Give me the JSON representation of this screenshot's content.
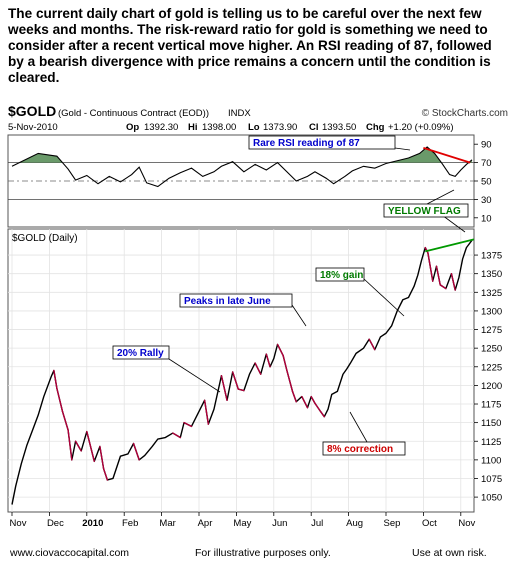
{
  "intro_text": "The current daily chart of gold is telling us to be careful over the next few weeks and months.  The risk-reward ratio for gold is something we need to consider after a recent vertical move higher.  An RSI reading of 87, followed by a bearish divergence with price remains a concern until the condition is cleared.",
  "footer": {
    "website": "www.ciovaccocapital.com",
    "disclaimer": "For illustrative purposes only.",
    "risk": "Use at own risk."
  },
  "chart_data": {
    "type": "line",
    "symbol": "$GOLD",
    "symbol_desc": "(Gold - Continuous Contract (EOD))",
    "exchange": "INDX",
    "provider": "© StockCharts.com",
    "date": "5-Nov-2010",
    "quote": {
      "op": "1392.30",
      "hi": "1398.00",
      "lo": "1373.90",
      "cl": "1393.50",
      "chg": "+1.20 (+0.09%)"
    },
    "price_panel_label": "$GOLD (Daily)",
    "x_ticks": [
      "Nov",
      "Dec",
      "2010",
      "Feb",
      "Mar",
      "Apr",
      "May",
      "Jun",
      "Jul",
      "Aug",
      "Sep",
      "Oct",
      "Nov"
    ],
    "rsi": {
      "ylim": [
        0,
        100
      ],
      "yticks": [
        10,
        30,
        50,
        70,
        90
      ],
      "overbought": 70,
      "oversold": 30,
      "midline": 50,
      "points": [
        [
          0,
          66
        ],
        [
          0.3,
          72
        ],
        [
          0.7,
          80
        ],
        [
          1.2,
          77
        ],
        [
          1.5,
          63
        ],
        [
          1.7,
          51
        ],
        [
          2.0,
          56
        ],
        [
          2.3,
          47
        ],
        [
          2.6,
          55
        ],
        [
          2.9,
          49
        ],
        [
          3.2,
          57
        ],
        [
          3.4,
          65
        ],
        [
          3.6,
          48
        ],
        [
          3.9,
          44
        ],
        [
          4.2,
          53
        ],
        [
          4.5,
          59
        ],
        [
          4.8,
          64
        ],
        [
          5.1,
          55
        ],
        [
          5.4,
          60
        ],
        [
          5.6,
          66
        ],
        [
          5.9,
          71
        ],
        [
          6.2,
          60
        ],
        [
          6.5,
          68
        ],
        [
          6.8,
          62
        ],
        [
          7.1,
          70
        ],
        [
          7.4,
          58
        ],
        [
          7.6,
          50
        ],
        [
          7.9,
          55
        ],
        [
          8.1,
          60
        ],
        [
          8.4,
          53
        ],
        [
          8.6,
          47
        ],
        [
          8.9,
          55
        ],
        [
          9.1,
          61
        ],
        [
          9.4,
          66
        ],
        [
          9.7,
          64
        ],
        [
          10.0,
          69
        ],
        [
          10.3,
          72
        ],
        [
          10.6,
          75
        ],
        [
          10.9,
          80
        ],
        [
          11.1,
          87
        ],
        [
          11.3,
          80
        ],
        [
          11.5,
          69
        ],
        [
          11.7,
          57
        ],
        [
          11.85,
          55
        ],
        [
          12.0,
          62
        ],
        [
          12.15,
          68
        ],
        [
          12.3,
          73
        ]
      ],
      "divergence_line": [
        [
          11.0,
          86
        ],
        [
          12.25,
          70
        ]
      ]
    },
    "price": {
      "ylim": [
        1030,
        1410
      ],
      "yticks": [
        1050,
        1075,
        1100,
        1125,
        1150,
        1175,
        1200,
        1225,
        1250,
        1275,
        1300,
        1325,
        1350,
        1375
      ],
      "points": [
        [
          0,
          1040
        ],
        [
          0.1,
          1065
        ],
        [
          0.25,
          1095
        ],
        [
          0.4,
          1120
        ],
        [
          0.55,
          1140
        ],
        [
          0.7,
          1160
        ],
        [
          0.85,
          1185
        ],
        [
          1.05,
          1212
        ],
        [
          1.12,
          1220
        ],
        [
          1.2,
          1196
        ],
        [
          1.35,
          1165
        ],
        [
          1.5,
          1140
        ],
        [
          1.6,
          1100
        ],
        [
          1.7,
          1125
        ],
        [
          1.85,
          1112
        ],
        [
          2.0,
          1138
        ],
        [
          2.2,
          1098
        ],
        [
          2.35,
          1118
        ],
        [
          2.45,
          1088
        ],
        [
          2.55,
          1073
        ],
        [
          2.7,
          1075
        ],
        [
          2.9,
          1105
        ],
        [
          3.1,
          1108
        ],
        [
          3.25,
          1122
        ],
        [
          3.4,
          1100
        ],
        [
          3.55,
          1106
        ],
        [
          3.75,
          1118
        ],
        [
          3.9,
          1128
        ],
        [
          4.1,
          1130
        ],
        [
          4.3,
          1136
        ],
        [
          4.5,
          1130
        ],
        [
          4.6,
          1150
        ],
        [
          4.8,
          1145
        ],
        [
          5.0,
          1165
        ],
        [
          5.15,
          1180
        ],
        [
          5.25,
          1148
        ],
        [
          5.4,
          1168
        ],
        [
          5.6,
          1213
        ],
        [
          5.75,
          1180
        ],
        [
          5.9,
          1218
        ],
        [
          6.05,
          1195
        ],
        [
          6.2,
          1193
        ],
        [
          6.35,
          1215
        ],
        [
          6.5,
          1230
        ],
        [
          6.65,
          1215
        ],
        [
          6.8,
          1242
        ],
        [
          6.9,
          1225
        ],
        [
          7.0,
          1236
        ],
        [
          7.1,
          1255
        ],
        [
          7.25,
          1240
        ],
        [
          7.35,
          1220
        ],
        [
          7.5,
          1192
        ],
        [
          7.6,
          1178
        ],
        [
          7.75,
          1185
        ],
        [
          7.9,
          1170
        ],
        [
          8.0,
          1185
        ],
        [
          8.1,
          1176
        ],
        [
          8.25,
          1165
        ],
        [
          8.35,
          1158
        ],
        [
          8.45,
          1168
        ],
        [
          8.55,
          1188
        ],
        [
          8.7,
          1192
        ],
        [
          8.85,
          1215
        ],
        [
          8.95,
          1222
        ],
        [
          9.05,
          1230
        ],
        [
          9.2,
          1243
        ],
        [
          9.4,
          1250
        ],
        [
          9.55,
          1262
        ],
        [
          9.7,
          1248
        ],
        [
          9.85,
          1265
        ],
        [
          10.0,
          1270
        ],
        [
          10.15,
          1280
        ],
        [
          10.3,
          1300
        ],
        [
          10.45,
          1315
        ],
        [
          10.6,
          1318
        ],
        [
          10.75,
          1333
        ],
        [
          10.85,
          1348
        ],
        [
          10.95,
          1368
        ],
        [
          11.05,
          1385
        ],
        [
          11.12,
          1378
        ],
        [
          11.25,
          1340
        ],
        [
          11.35,
          1360
        ],
        [
          11.45,
          1335
        ],
        [
          11.6,
          1330
        ],
        [
          11.75,
          1350
        ],
        [
          11.85,
          1328
        ],
        [
          11.95,
          1345
        ],
        [
          12.05,
          1370
        ],
        [
          12.15,
          1385
        ],
        [
          12.3,
          1395
        ]
      ],
      "resistance_line": [
        [
          11.05,
          1380
        ],
        [
          12.35,
          1396
        ]
      ]
    },
    "annotations": {
      "rsi_note": "Rare RSI reading of 87",
      "yellow_flag": "YELLOW FLAG",
      "gain": "18% gain",
      "peaks": "Peaks in late June",
      "rally": "20% Rally",
      "correction": "8% correction"
    }
  }
}
